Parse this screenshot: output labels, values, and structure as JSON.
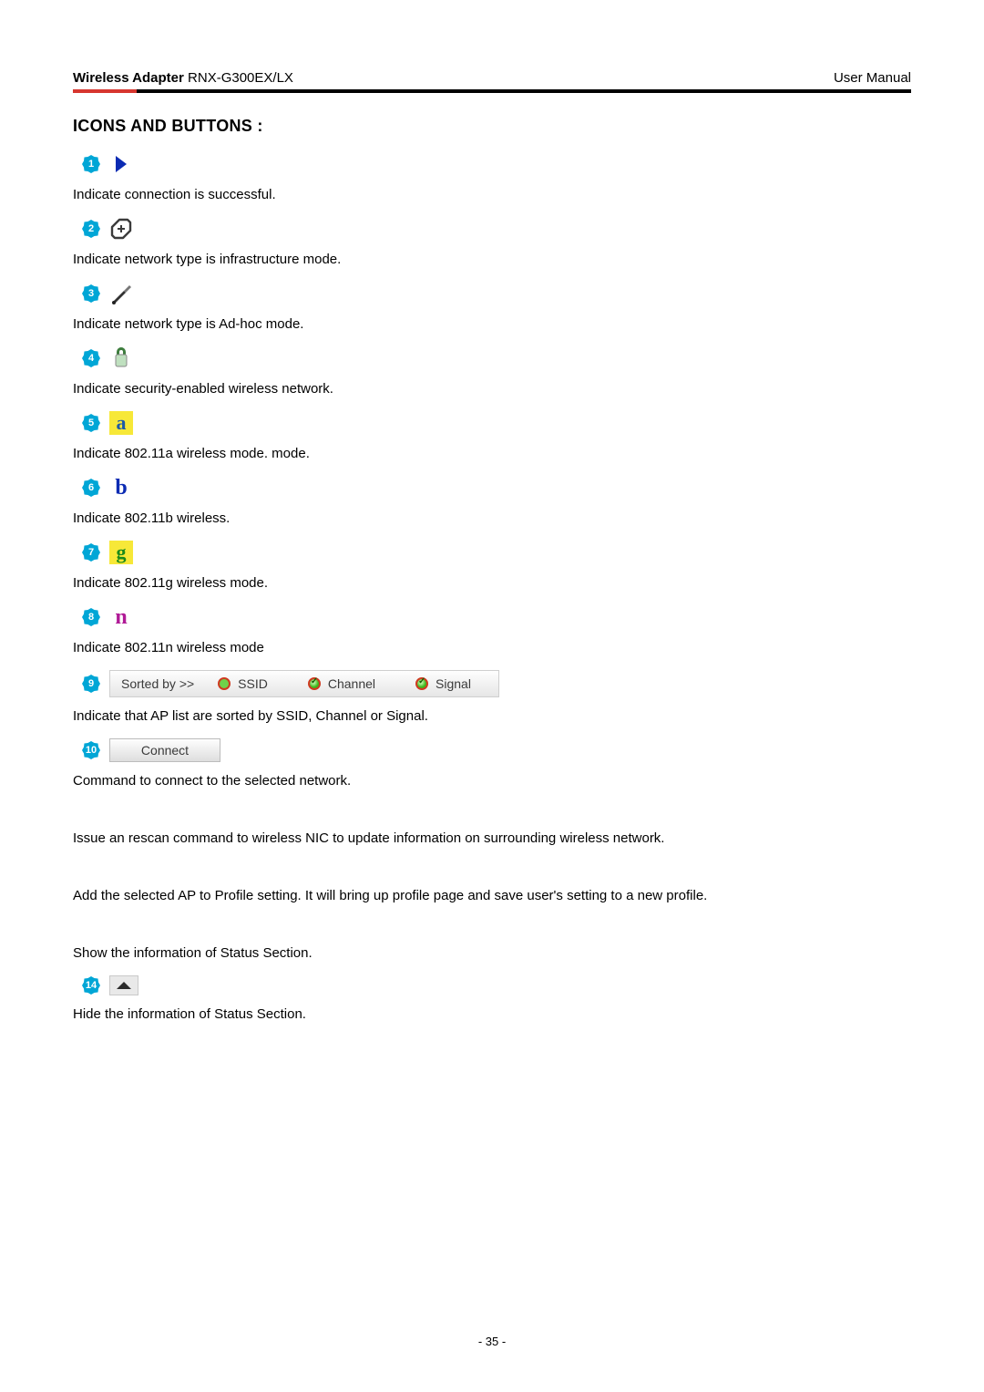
{
  "header": {
    "product_label_bold": "Wireless Adapter",
    "product_model": " RNX-G300EX/LX",
    "right": "User Manual",
    "colors": {
      "red": "#d7362f",
      "black": "#000000"
    }
  },
  "title": "ICONS AND BUTTONS :",
  "badge_fill": "#00a6d6",
  "items": [
    {
      "num": "1",
      "icon": {
        "type": "svg",
        "svg": "<svg width='16' height='22' viewBox='0 0 16 22'><path d='M2 2 L14 11 L2 20 Z' fill='#0b2bb3'/></svg>"
      },
      "desc": "Indicate connection is successful."
    },
    {
      "num": "2",
      "icon": {
        "type": "svg",
        "svg": "<svg width='26' height='26' viewBox='0 0 26 26'><path d='M11 3 L20 3 L23 6 L23 15 L15 23 L6 23 L3 20 L3 11 Z' fill='none' stroke='#3b3b3b' stroke-width='2.4' stroke-linejoin='round'/><line x1='13' y1='9' x2='13' y2='17' stroke='#3b3b3b' stroke-width='2'/><line x1='9' y1='13' x2='17' y2='13' stroke='#3b3b3b' stroke-width='2'/></svg>"
      },
      "desc": "Indicate network type is infrastructure mode."
    },
    {
      "num": "3",
      "icon": {
        "type": "svg",
        "svg": "<svg width='26' height='26' viewBox='0 0 26 26'><path d='M4 22 L16 10 L18 12 L6 24 Z' fill='#333'/><path d='M16 10 L22 4 L24 6 L18 12 Z' fill='#777'/><circle cx='5' cy='23' r='2' fill='#222'/></svg>"
      },
      "desc": "Indicate network type is Ad-hoc mode."
    },
    {
      "num": "4",
      "icon": {
        "type": "svg",
        "svg": "<svg width='22' height='26' viewBox='0 0 22 26'><path d='M6 6 a5 5 0 0 1 10 0 v3 h-3 v-3 a2 2 0 0 0 -4 0 v3 h-3 Z' fill='#3d7d3d'/><rect x='5' y='9' width='12' height='13' rx='2' fill='#bfe0bf' stroke='#888' stroke-width='1'/></svg>"
      },
      "desc": "Indicate security-enabled wireless network."
    },
    {
      "num": "5",
      "icon": {
        "type": "letter",
        "letter": "a",
        "bg": "#f7e838",
        "fg": "#1c5aa6",
        "font": "bold 22px Georgia, 'Times New Roman', serif"
      },
      "desc": "Indicate 802.11a wireless mode. mode."
    },
    {
      "num": "6",
      "icon": {
        "type": "letter",
        "letter": "b",
        "bg": "transparent",
        "fg": "#0b2bb3",
        "font": "bold 24px Georgia, 'Times New Roman', serif"
      },
      "desc": "Indicate 802.11b wireless."
    },
    {
      "num": "7",
      "icon": {
        "type": "letter",
        "letter": "g",
        "bg": "#f7e838",
        "fg": "#1a8a1a",
        "font": "bold 22px Georgia, 'Times New Roman', serif"
      },
      "desc": "Indicate 802.11g wireless mode."
    },
    {
      "num": "8",
      "icon": {
        "type": "letter",
        "letter": "n",
        "bg": "transparent",
        "fg": "#b01a96",
        "font": "bold 24px Georgia, 'Times New Roman', serif"
      },
      "desc": "Indicate 802.11n wireless mode"
    },
    {
      "num": "9",
      "icon": {
        "type": "sortbar"
      },
      "sortbar": {
        "label": "Sorted by >>",
        "opts": [
          "SSID",
          "Channel",
          "Signal"
        ],
        "checked": [
          false,
          true,
          true
        ]
      },
      "desc": "Indicate that AP list are sorted by SSID, Channel or Signal."
    },
    {
      "num": "10",
      "icon": {
        "type": "connect"
      },
      "connect_label": "Connect",
      "desc": "Command to connect to the selected network."
    },
    {
      "num": "",
      "icon": {
        "type": "none"
      },
      "desc": "Issue an rescan command to wireless NIC to update information on surrounding wireless network."
    },
    {
      "num": "",
      "icon": {
        "type": "none"
      },
      "desc": "Add the selected AP to Profile setting. It will bring up profile page and save user's setting to a new profile."
    },
    {
      "num": "",
      "icon": {
        "type": "none"
      },
      "desc": "Show the information of Status Section."
    },
    {
      "num": "14",
      "icon": {
        "type": "hide_triangle"
      },
      "desc": "Hide the information of Status Section."
    }
  ],
  "footer": "- 35 -"
}
